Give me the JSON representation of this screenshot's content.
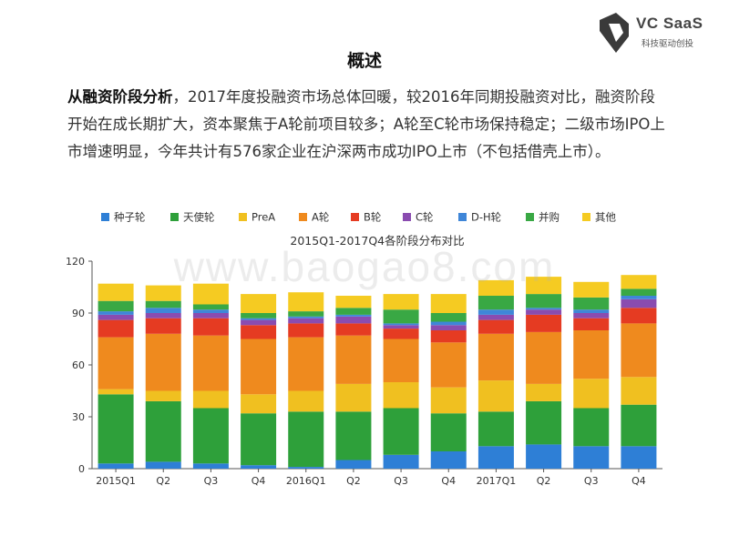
{
  "logo": {
    "brand": "VC SaaS",
    "tagline": "科技驱动创投"
  },
  "title": "概述",
  "paragraph": {
    "lead": "从融资阶段分析",
    "body": "，2017年度投融资市场总体回暖，较2016年同期投融资对比，融资阶段开始在成长期扩大，资本聚焦于A轮前项目较多；A轮至C轮市场保持稳定；二级市场IPO上市增速明显，今年共计有576家企业在沪深两市成功IPO上市（不包括借壳上市）。"
  },
  "watermark": "www.baogao8.com",
  "chart_data": {
    "type": "bar",
    "stacked": true,
    "title": "2015Q1-2017Q4各阶段分布对比",
    "categories": [
      "2015Q1",
      "Q2",
      "Q3",
      "Q4",
      "2016Q1",
      "Q2",
      "Q3",
      "Q4",
      "2017Q1",
      "Q2",
      "Q3",
      "Q4"
    ],
    "ylim": [
      0,
      120
    ],
    "yticks": [
      0,
      30,
      60,
      90,
      120
    ],
    "grid": false,
    "legend_position": "top",
    "series": [
      {
        "name": "种子轮",
        "color": "#2e7fd6",
        "values": [
          3,
          4,
          3,
          2,
          1,
          5,
          8,
          10,
          13,
          14,
          13,
          13
        ]
      },
      {
        "name": "天使轮",
        "color": "#2ea03a",
        "values": [
          40,
          35,
          32,
          30,
          32,
          28,
          27,
          22,
          20,
          25,
          22,
          24
        ]
      },
      {
        "name": "PreA",
        "color": "#f0c020",
        "values": [
          3,
          6,
          10,
          11,
          12,
          16,
          15,
          15,
          18,
          10,
          17,
          16
        ]
      },
      {
        "name": "A轮",
        "color": "#ef8a1e",
        "values": [
          30,
          33,
          32,
          32,
          31,
          28,
          25,
          26,
          27,
          30,
          28,
          31
        ]
      },
      {
        "name": "B轮",
        "color": "#e53b22",
        "values": [
          10,
          9,
          10,
          8,
          8,
          7,
          6,
          7,
          8,
          10,
          7,
          9
        ]
      },
      {
        "name": "C轮",
        "color": "#8a4cb0",
        "values": [
          3,
          3,
          3,
          3,
          3,
          4,
          2,
          3,
          3,
          3,
          3,
          5
        ]
      },
      {
        "name": "D-H轮",
        "color": "#3f86d8",
        "values": [
          2,
          3,
          2,
          1,
          1,
          1,
          1,
          2,
          3,
          1,
          2,
          2
        ]
      },
      {
        "name": "并购",
        "color": "#39a844",
        "values": [
          6,
          4,
          3,
          3,
          3,
          4,
          8,
          5,
          8,
          8,
          7,
          4
        ]
      },
      {
        "name": "其他",
        "color": "#f5cb22",
        "values": [
          10,
          9,
          12,
          11,
          11,
          7,
          9,
          11,
          9,
          10,
          9,
          8
        ]
      }
    ]
  }
}
